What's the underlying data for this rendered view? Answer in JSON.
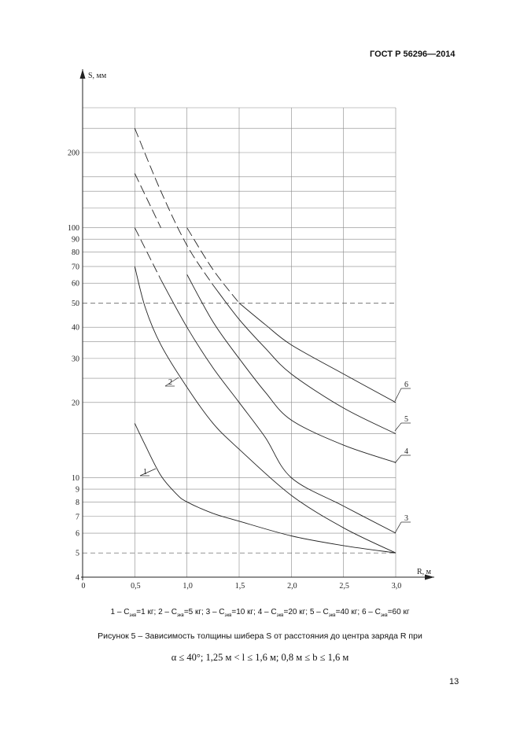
{
  "header": {
    "doc_code": "ГОСТ Р 56296—2014"
  },
  "chart_data": {
    "type": "line",
    "xlabel": "R, м",
    "ylabel": "S, мм",
    "y_scale": "log",
    "xlim": [
      0,
      3.0
    ],
    "ylim": [
      4,
      300
    ],
    "grid": true,
    "x_tick_labels": [
      "0",
      "0,5",
      "1,0",
      "1,5",
      "2,0",
      "2,5",
      "3,0"
    ],
    "y_tick_labels": [
      "4",
      "5",
      "6",
      "7",
      "8",
      "9",
      "10",
      "20",
      "30",
      "40",
      "50",
      "60",
      "70",
      "80",
      "90",
      "100",
      "200"
    ],
    "series": [
      {
        "name": "1",
        "dashed_x_max": 0,
        "points": [
          [
            0.5,
            16.5
          ],
          [
            0.6,
            13.5
          ],
          [
            0.75,
            10.2
          ],
          [
            0.9,
            8.6
          ],
          [
            1.0,
            8.0
          ],
          [
            1.25,
            7.2
          ],
          [
            1.5,
            6.7
          ],
          [
            2.0,
            5.85
          ],
          [
            2.5,
            5.35
          ],
          [
            3.0,
            5.0
          ]
        ]
      },
      {
        "name": "2",
        "dashed_x_max": 0,
        "points": [
          [
            0.5,
            70
          ],
          [
            0.6,
            48
          ],
          [
            0.75,
            34
          ],
          [
            1.0,
            23
          ],
          [
            1.25,
            16.5
          ],
          [
            1.5,
            13
          ],
          [
            2.0,
            8.5
          ],
          [
            2.5,
            6.3
          ],
          [
            3.0,
            5.0
          ]
        ]
      },
      {
        "name": "3",
        "dashed_x_max": 0.75,
        "points": [
          [
            0.5,
            100
          ],
          [
            0.75,
            62
          ],
          [
            1.0,
            40
          ],
          [
            1.25,
            27.5
          ],
          [
            1.5,
            20
          ],
          [
            1.75,
            14.5
          ],
          [
            2.0,
            10
          ],
          [
            2.5,
            7.7
          ],
          [
            3.0,
            6.0
          ]
        ]
      },
      {
        "name": "4",
        "dashed_x_max": 0.9,
        "points": [
          [
            0.5,
            165
          ],
          [
            0.75,
            100
          ],
          [
            1.0,
            65
          ],
          [
            1.25,
            42
          ],
          [
            1.5,
            30
          ],
          [
            1.75,
            22
          ],
          [
            2.0,
            17
          ],
          [
            2.5,
            13.5
          ],
          [
            3.0,
            11.5
          ]
        ]
      },
      {
        "name": "5",
        "dashed_x_max": 1.25,
        "points": [
          [
            0.5,
            250
          ],
          [
            0.75,
            140
          ],
          [
            1.0,
            85
          ],
          [
            1.25,
            59
          ],
          [
            1.5,
            43
          ],
          [
            1.75,
            33
          ],
          [
            2.0,
            26
          ],
          [
            2.5,
            19
          ],
          [
            3.0,
            15
          ]
        ]
      },
      {
        "name": "6",
        "dashed_x_max": 1.5,
        "points": [
          [
            1.0,
            100
          ],
          [
            1.25,
            68
          ],
          [
            1.5,
            50
          ],
          [
            1.75,
            41
          ],
          [
            2.0,
            34
          ],
          [
            2.5,
            26
          ],
          [
            3.0,
            20
          ]
        ]
      }
    ],
    "reference_lines": [
      50,
      5
    ]
  },
  "legend": {
    "items": [
      {
        "num": "1",
        "value": "=1 кг"
      },
      {
        "num": "2",
        "value": "=5 кг"
      },
      {
        "num": "3",
        "value": "=10 кг"
      },
      {
        "num": "4",
        "value": "=20 кг"
      },
      {
        "num": "5",
        "value": "=40 кг"
      },
      {
        "num": "6",
        "value": "=60 кг"
      }
    ],
    "symbol": "C",
    "subscript": "экв"
  },
  "caption": "Рисунок 5 – Зависимость толщины шибера S от расстояния до центра заряда R при",
  "condition": "α ≤ 40°; 1,25 м < l ≤ 1,6 м; 0,8 м ≤ b ≤ 1,6 м",
  "page_number": "13"
}
